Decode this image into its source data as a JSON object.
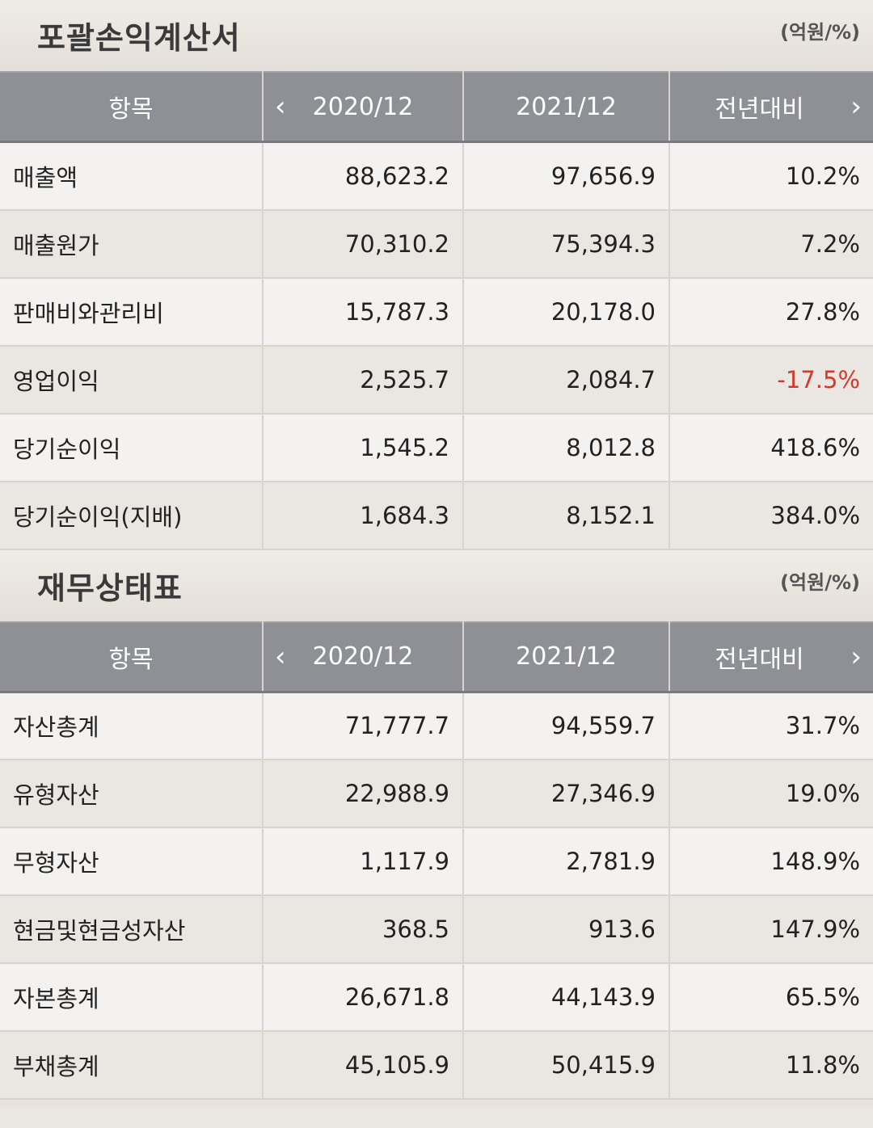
{
  "income": {
    "title": "포괄손익계산서",
    "unit": "(억원/%)",
    "headers": [
      "항목",
      "2020/12",
      "2021/12",
      "전년대비"
    ],
    "rows": [
      {
        "label": "매출액",
        "y2020": "88,623.2",
        "y2021": "97,656.9",
        "yoy": "10.2%",
        "negative": false
      },
      {
        "label": "매출원가",
        "y2020": "70,310.2",
        "y2021": "75,394.3",
        "yoy": "7.2%",
        "negative": false
      },
      {
        "label": "판매비와관리비",
        "y2020": "15,787.3",
        "y2021": "20,178.0",
        "yoy": "27.8%",
        "negative": false
      },
      {
        "label": "영업이익",
        "y2020": "2,525.7",
        "y2021": "2,084.7",
        "yoy": "-17.5%",
        "negative": true
      },
      {
        "label": "당기순이익",
        "y2020": "1,545.2",
        "y2021": "8,012.8",
        "yoy": "418.6%",
        "negative": false
      },
      {
        "label": "당기순이익(지배)",
        "y2020": "1,684.3",
        "y2021": "8,152.1",
        "yoy": "384.0%",
        "negative": false
      }
    ]
  },
  "balance": {
    "title": "재무상태표",
    "unit": "(억원/%)",
    "headers": [
      "항목",
      "2020/12",
      "2021/12",
      "전년대비"
    ],
    "rows": [
      {
        "label": "자산총계",
        "y2020": "71,777.7",
        "y2021": "94,559.7",
        "yoy": "31.7%",
        "negative": false
      },
      {
        "label": "유형자산",
        "y2020": "22,988.9",
        "y2021": "27,346.9",
        "yoy": "19.0%",
        "negative": false
      },
      {
        "label": "무형자산",
        "y2020": "1,117.9",
        "y2021": "2,781.9",
        "yoy": "148.9%",
        "negative": false
      },
      {
        "label": "현금및현금성자산",
        "y2020": "368.5",
        "y2021": "913.6",
        "yoy": "147.9%",
        "negative": false
      },
      {
        "label": "자본총계",
        "y2020": "26,671.8",
        "y2021": "44,143.9",
        "yoy": "65.5%",
        "negative": false
      },
      {
        "label": "부채총계",
        "y2020": "45,105.9",
        "y2021": "50,415.9",
        "yoy": "11.8%",
        "negative": false
      }
    ]
  },
  "icons": {
    "prev": "chevron-left-icon",
    "next": "chevron-right-icon"
  },
  "colors": {
    "negative": "#d43a2a",
    "header_bg": "#8e9096"
  }
}
